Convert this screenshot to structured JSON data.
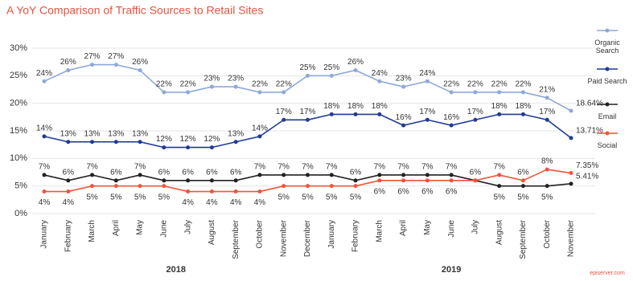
{
  "chart_data": {
    "type": "line",
    "title": "A YoY Comparison of Traffic Sources to Retail Sites",
    "categories": [
      "January",
      "February",
      "March",
      "April",
      "May",
      "June",
      "July",
      "August",
      "September",
      "October",
      "November",
      "December",
      "January",
      "February",
      "March",
      "April",
      "May",
      "June",
      "July",
      "August",
      "September",
      "October",
      "November"
    ],
    "year_labels": [
      "2018",
      "2019"
    ],
    "source": "episerver.com",
    "ylim": [
      0,
      30
    ],
    "yticks": [
      {
        "value": 0,
        "label": "0%"
      },
      {
        "value": 5,
        "label": "5%"
      },
      {
        "value": 10,
        "label": "10%"
      },
      {
        "value": 15,
        "label": "15%"
      },
      {
        "value": 20,
        "label": "20%"
      },
      {
        "value": 25,
        "label": "25%"
      },
      {
        "value": 30,
        "label": "30%"
      }
    ],
    "grid": true,
    "legend": "right",
    "series": [
      {
        "name": "Organic Search",
        "color": "#8ea8dc",
        "values": [
          24,
          26,
          27,
          27,
          26,
          22,
          22,
          23,
          23,
          22,
          22,
          25,
          25,
          26,
          24,
          23,
          24,
          22,
          22,
          22,
          22,
          21,
          18.64
        ],
        "value_labels": [
          "24%",
          "26%",
          "27%",
          "27%",
          "26%",
          "22%",
          "22%",
          "23%",
          "23%",
          "22%",
          "22%",
          "25%",
          "25%",
          "26%",
          "24%",
          "23%",
          "24%",
          "22%",
          "22%",
          "22%",
          "22%",
          "21%",
          "18.64%"
        ]
      },
      {
        "name": "Paid Search",
        "color": "#1f3a93",
        "values": [
          14,
          13,
          13,
          13,
          13,
          12,
          12,
          12,
          13,
          14,
          17,
          17,
          18,
          18,
          18,
          16,
          17,
          16,
          17,
          18,
          18,
          17,
          13.71
        ],
        "value_labels": [
          "14%",
          "13%",
          "13%",
          "13%",
          "13%",
          "12%",
          "12%",
          "12%",
          "13%",
          "14%",
          "17%",
          "17%",
          "18%",
          "18%",
          "18%",
          "16%",
          "17%",
          "16%",
          "17%",
          "18%",
          "18%",
          "17%",
          "13.71%"
        ]
      },
      {
        "name": "Email",
        "color": "#222222",
        "values": [
          7,
          6,
          7,
          6,
          7,
          6,
          6,
          6,
          6,
          7,
          7,
          7,
          7,
          6,
          7,
          7,
          7,
          7,
          6,
          5,
          5,
          5,
          5.41
        ],
        "value_labels": [
          "7%",
          "6%",
          "7%",
          "6%",
          "7%",
          "6%",
          "6%",
          "6%",
          "6%",
          "7%",
          "7%",
          "7%",
          "7%",
          "6%",
          "7%",
          "7%",
          "7%",
          "7%",
          "6%",
          "5%",
          "5%",
          "5%",
          "5.41%"
        ]
      },
      {
        "name": "Social",
        "color": "#ef5539",
        "values": [
          4,
          4,
          5,
          5,
          5,
          5,
          4,
          4,
          4,
          4,
          5,
          5,
          5,
          5,
          6,
          6,
          6,
          6,
          6,
          7,
          6,
          8,
          7.35
        ],
        "value_labels": [
          "4%",
          "4%",
          "5%",
          "5%",
          "5%",
          "5%",
          "4%",
          "4%",
          "4%",
          "4%",
          "5%",
          "5%",
          "5%",
          "5%",
          "6%",
          "6%",
          "6%",
          "6%",
          null,
          "7%",
          "6%",
          "8%",
          "7.35%"
        ]
      }
    ]
  }
}
